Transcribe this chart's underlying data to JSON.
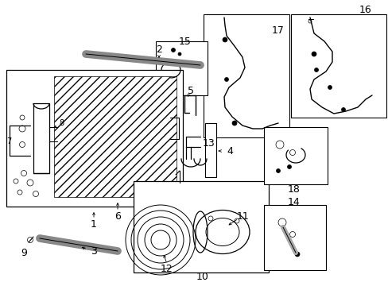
{
  "bg_color": "#ffffff",
  "line_color": "#000000",
  "figsize": [
    4.89,
    3.6
  ],
  "dpi": 100,
  "fig_w": 489,
  "fig_h": 360
}
